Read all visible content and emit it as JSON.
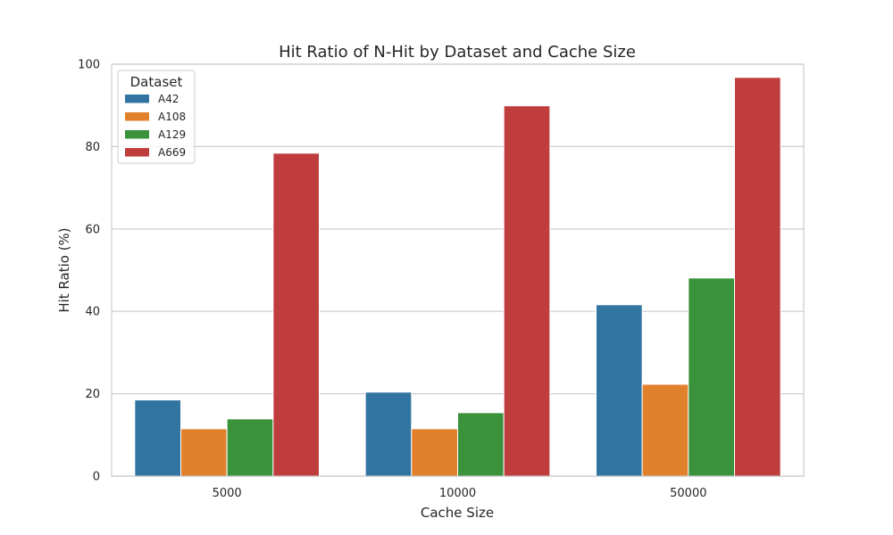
{
  "chart_data": {
    "type": "bar",
    "title": "Hit Ratio of N-Hit by Dataset and Cache Size",
    "xlabel": "Cache Size",
    "ylabel": "Hit Ratio (%)",
    "categories": [
      "5000",
      "10000",
      "50000"
    ],
    "ylim": [
      0,
      100
    ],
    "yticks": [
      0,
      20,
      40,
      60,
      80,
      100
    ],
    "grid": true,
    "legend": {
      "title": "Dataset",
      "placement": "top-left"
    },
    "series": [
      {
        "name": "A42",
        "color": "#3274a1",
        "values": [
          18.5,
          20.4,
          41.6
        ]
      },
      {
        "name": "A108",
        "color": "#e1812c",
        "values": [
          11.5,
          11.5,
          22.3
        ]
      },
      {
        "name": "A129",
        "color": "#3a923a",
        "values": [
          13.9,
          15.4,
          48.1
        ]
      },
      {
        "name": "A669",
        "color": "#c03d3e",
        "values": [
          78.4,
          89.9,
          96.8
        ]
      }
    ]
  }
}
